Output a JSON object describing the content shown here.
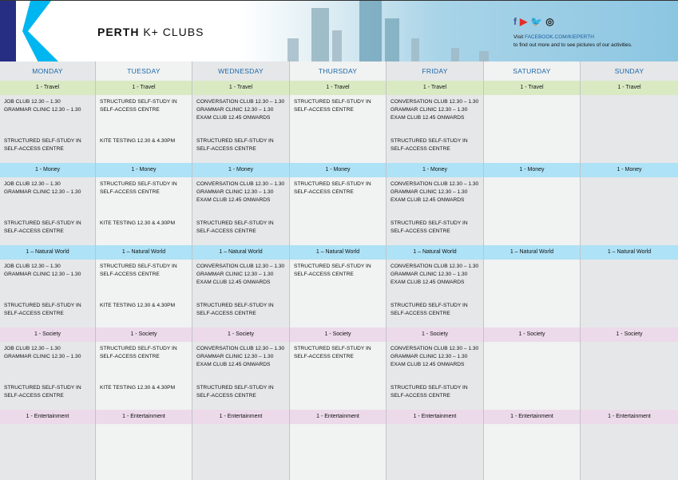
{
  "header": {
    "title_bold": "PERTH",
    "title_rest": "K+ CLUBS",
    "social": [
      {
        "icon": "facebook-icon",
        "glyph": "f",
        "color": "#3b5998"
      },
      {
        "icon": "youtube-icon",
        "glyph": "▶",
        "color": "#e52d27"
      },
      {
        "icon": "twitter-icon",
        "glyph": "🐦",
        "color": "#1da1f2"
      },
      {
        "icon": "instagram-icon",
        "glyph": "◎",
        "color": "#222222"
      }
    ],
    "visit_prefix": "Visit",
    "visit_link": "FACEBOOK.COM/KIEPERTH",
    "visit_text": "to find out more and to see pictures of our activities."
  },
  "colors": {
    "col_dark": "#e6e7e9",
    "col_light": "#f1f2f2",
    "travel": "#d9eac3",
    "money": "#aee2f6",
    "natural": "#aee2f6",
    "society": "#ecdaea",
    "entertainment": "#ecdaea",
    "day_text": "#1b67a8"
  },
  "days": [
    "MONDAY",
    "TUESDAY",
    "WEDNESDAY",
    "THURSDAY",
    "FRIDAY",
    "SATURDAY",
    "SUNDAY"
  ],
  "blocks": [
    {
      "label": "1 - Travel",
      "color_key": "travel"
    },
    {
      "label": "1 - Money",
      "color_key": "money"
    },
    {
      "label": "1 – Natural World",
      "color_key": "natural"
    },
    {
      "label": "1 - Society",
      "color_key": "society"
    },
    {
      "label": "1 - Entertainment",
      "color_key": "entertainment"
    }
  ],
  "schedule": [
    {
      "top": [
        "JOB CLUB 12.30 – 1.30",
        "GRAMMAR CLINIC 12.30 – 1.30"
      ],
      "bottom": [
        "STRUCTURED SELF-STUDY IN SELF-ACCESS CENTRE"
      ]
    },
    {
      "top": [
        "STRUCTURED SELF-STUDY IN SELF-ACCESS CENTRE"
      ],
      "bottom": [
        "KITE TESTING 12.30 & 4.30PM"
      ]
    },
    {
      "top": [
        "CONVERSATION CLUB 12.30 – 1.30",
        "GRAMMAR CLINIC 12.30 – 1.30",
        "EXAM CLUB 12.45 ONWARDS"
      ],
      "bottom": [
        "STRUCTURED SELF-STUDY IN SELF-ACCESS CENTRE"
      ]
    },
    {
      "top": [
        "STRUCTURED SELF-STUDY IN SELF-ACCESS CENTRE"
      ],
      "bottom": []
    },
    {
      "top": [
        "CONVERSATION CLUB 12.30 – 1.30",
        "GRAMMAR CLINIC 12.30 – 1.30",
        "EXAM CLUB 12.45 ONWARDS"
      ],
      "bottom": [
        "STRUCTURED SELF-STUDY IN SELF-ACCESS CENTRE"
      ]
    },
    {
      "top": [],
      "bottom": []
    },
    {
      "top": [],
      "bottom": []
    }
  ]
}
